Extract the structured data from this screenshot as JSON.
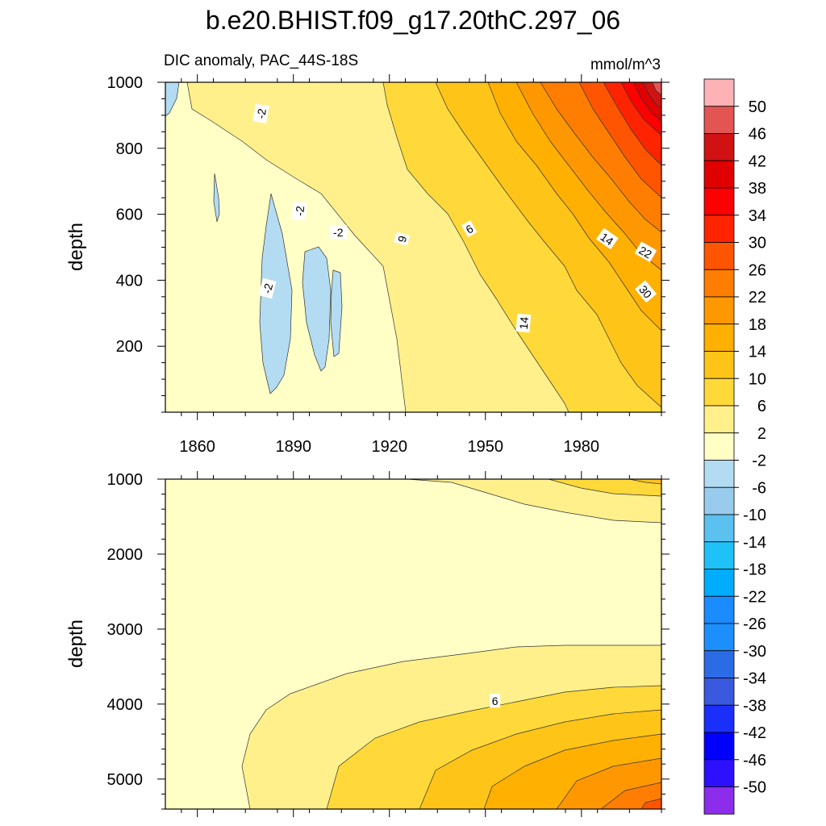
{
  "chart_data": {
    "type": "heatmap",
    "title": "b.e20.BHIST.f09_g17.20thC.297_06",
    "subtitle": "DIC anomaly, PAC_44S-18S",
    "units": "mmol/m^3",
    "ylabel": "depth",
    "x_ticks": [
      "1860",
      "1890",
      "1920",
      "1950",
      "1980"
    ],
    "xlim": [
      1850,
      2005
    ],
    "panels": [
      {
        "name": "upper",
        "ylim": [
          1000,
          0
        ],
        "y_ticks": [
          "200",
          "400",
          "600",
          "800",
          "1000"
        ],
        "contour_labels": [
          {
            "text": "-2",
            "x": 1882,
            "y": 375,
            "angle": -75
          },
          {
            "text": "-2",
            "x": 1880,
            "y": 905,
            "angle": -80
          },
          {
            "text": "-2",
            "x": 1892,
            "y": 610,
            "angle": -85
          },
          {
            "text": "-2",
            "x": 1904,
            "y": 545,
            "angle": 0
          },
          {
            "text": "9",
            "x": 1924,
            "y": 525,
            "angle": -75
          },
          {
            "text": "6",
            "x": 1945,
            "y": 555,
            "angle": -30
          },
          {
            "text": "14",
            "x": 1962,
            "y": 270,
            "angle": -85
          },
          {
            "text": "14",
            "x": 1988,
            "y": 525,
            "angle": 35
          },
          {
            "text": "22",
            "x": 2000,
            "y": 485,
            "angle": 30
          },
          {
            "text": "30",
            "x": 2000,
            "y": 365,
            "angle": 50
          }
        ]
      },
      {
        "name": "lower",
        "ylim": [
          1000,
          5400
        ],
        "y_ticks": [
          "1000",
          "2000",
          "3000",
          "4000",
          "5000"
        ],
        "contour_labels": [
          {
            "text": "6",
            "x": 1953,
            "y": 3960,
            "angle": 0
          }
        ]
      }
    ],
    "colorbar": {
      "labels": [
        "50",
        "46",
        "42",
        "38",
        "34",
        "30",
        "26",
        "22",
        "18",
        "14",
        "10",
        "6",
        "2",
        "-2",
        "-6",
        "-10",
        "-14",
        "-18",
        "-22",
        "-26",
        "-30",
        "-34",
        "-38",
        "-42",
        "-46",
        "-50"
      ],
      "colors": [
        "#fdb2b6",
        "#e35553",
        "#d01212",
        "#e10000",
        "#ff0000",
        "#ff2400",
        "#ff5500",
        "#ff7d00",
        "#ff9800",
        "#ffb000",
        "#ffc418",
        "#ffd93a",
        "#fff08c",
        "#ffffc6",
        "#b3dcf2",
        "#98cbec",
        "#5bc1ef",
        "#1ec2f8",
        "#00adfc",
        "#1a8cff",
        "#1d8ffd",
        "#2c6be6",
        "#3a59de",
        "#1b2ffa",
        "#0000ff",
        "#2c10ff",
        "#8c2deb"
      ]
    }
  }
}
